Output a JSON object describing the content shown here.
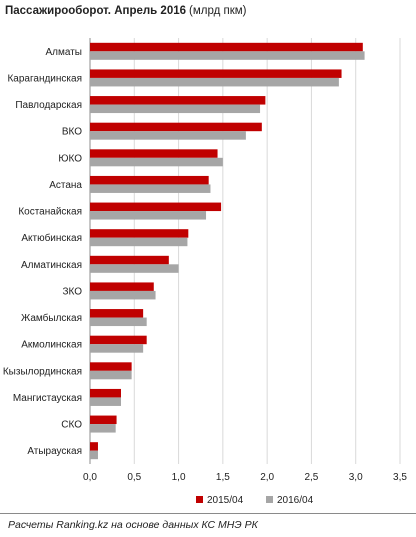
{
  "chart_data": {
    "type": "bar",
    "orientation": "horizontal",
    "title": "Пассажирооборот.  Апрель 2016",
    "subtitle": "(млрд пкм)",
    "categories": [
      "Алматы",
      "Карагандинская",
      "Павлодарская",
      "ВКО",
      "ЮКО",
      "Астана",
      "Костанайская",
      "Актюбинская",
      "Алматинская",
      "ЗКО",
      "Жамбылская",
      "Акмолинская",
      "Кызылординская",
      "Мангистауская",
      "СКО",
      "Атырауская"
    ],
    "series": [
      {
        "name": "2015/04",
        "color": "#c00000",
        "values": [
          3.08,
          2.84,
          1.98,
          1.94,
          1.44,
          1.34,
          1.48,
          1.11,
          0.89,
          0.72,
          0.6,
          0.64,
          0.47,
          0.35,
          0.3,
          0.09
        ]
      },
      {
        "name": "2016/04",
        "color": "#a6a6a6",
        "values": [
          3.1,
          2.81,
          1.92,
          1.76,
          1.5,
          1.36,
          1.31,
          1.1,
          1.0,
          0.74,
          0.64,
          0.6,
          0.47,
          0.35,
          0.29,
          0.09
        ]
      }
    ],
    "xlim": [
      0,
      3.5
    ],
    "xticks": [
      "0,0",
      "0,5",
      "1,0",
      "1,5",
      "2,0",
      "2,5",
      "3,0",
      "3,5"
    ],
    "grid": true,
    "legend": "bottom"
  },
  "source": "Расчеты Ranking.kz на основе данных КС МНЭ РК"
}
